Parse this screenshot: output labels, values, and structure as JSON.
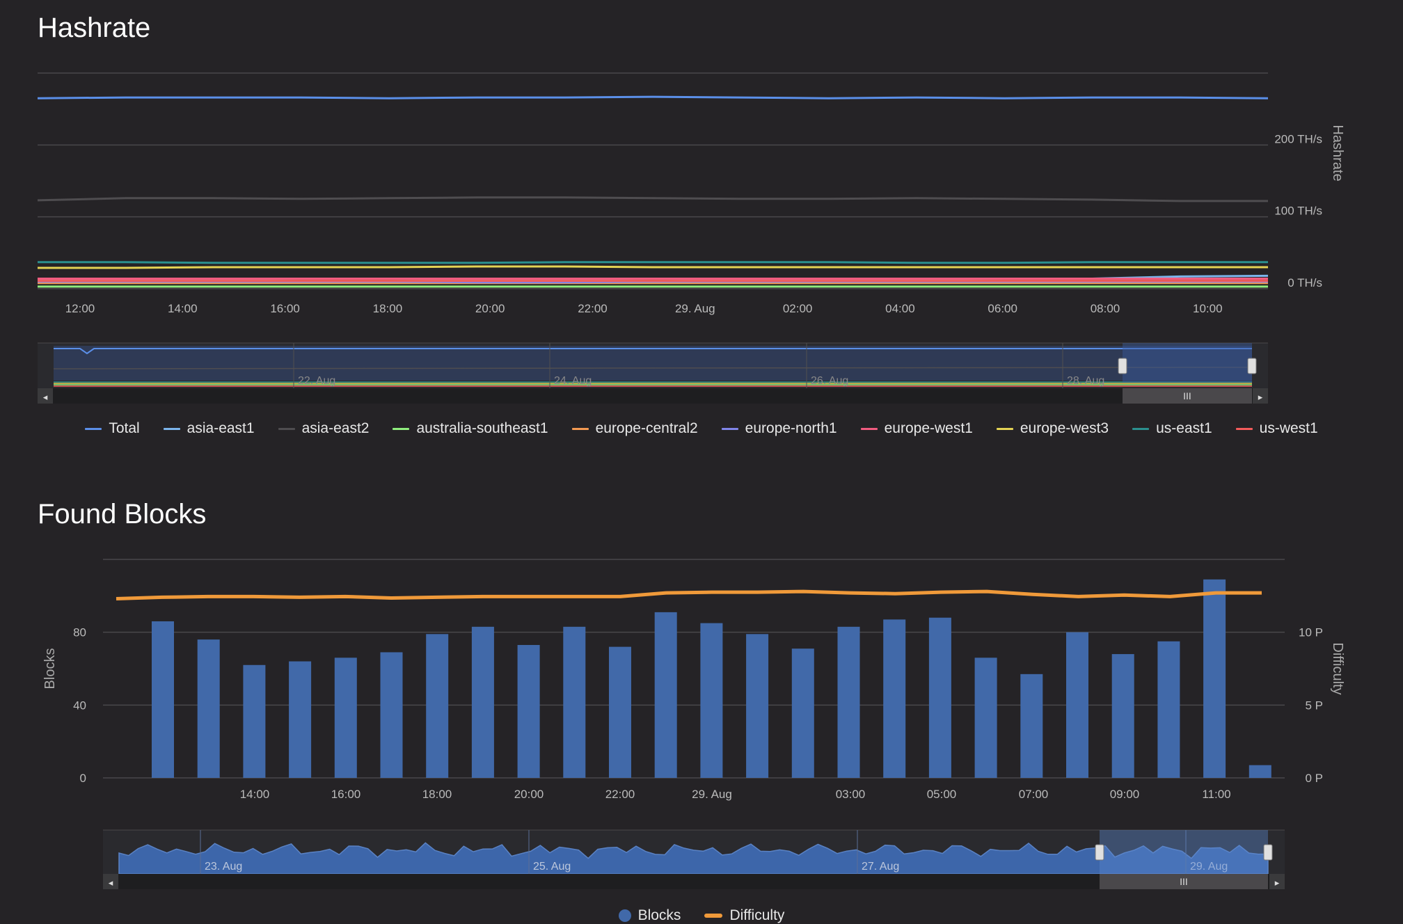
{
  "colors": {
    "background": "#252326",
    "grid": "#4a484b",
    "navigator_fill": "#34445e",
    "navigator_band": "#2f3a55",
    "bar": "#4169a9",
    "difficulty": "#f09a3a"
  },
  "hashrate": {
    "title": "Hashrate",
    "chart_data": {
      "type": "line",
      "ylabel": "Hashrate",
      "y_unit": "TH/s",
      "ylim": [
        0,
        300
      ],
      "y_ticks": [
        {
          "value": 0,
          "label": "0 TH/s"
        },
        {
          "value": 100,
          "label": "100 TH/s"
        },
        {
          "value": 200,
          "label": "200 TH/s"
        }
      ],
      "x_range": [
        "11:00",
        "11:15 (29. Aug)"
      ],
      "x_ticks": [
        "12:00",
        "14:00",
        "16:00",
        "18:00",
        "20:00",
        "22:00",
        "29. Aug",
        "02:00",
        "04:00",
        "06:00",
        "08:00",
        "10:00"
      ],
      "grid": true,
      "series": [
        {
          "name": "Total",
          "color": "#5b8fe8",
          "values": [
            265,
            266,
            266,
            266,
            265,
            266,
            266,
            267,
            266,
            265,
            266,
            265,
            266,
            266,
            265
          ]
        },
        {
          "name": "asia-east1",
          "color": "#7cb5ec",
          "values": [
            13,
            13,
            13,
            14,
            14,
            13,
            13,
            14,
            13,
            13,
            13,
            14,
            14,
            17,
            18
          ]
        },
        {
          "name": "asia-east2",
          "color": "#4f4d50",
          "values": [
            123,
            126,
            126,
            125,
            126,
            127,
            127,
            126,
            125,
            125,
            126,
            125,
            124,
            122,
            122
          ]
        },
        {
          "name": "australia-southeast1",
          "color": "#90ee7e",
          "values": [
            3,
            3,
            3,
            3,
            3,
            3,
            3,
            3,
            3,
            3,
            3,
            3,
            3,
            3,
            3
          ]
        },
        {
          "name": "europe-central2",
          "color": "#f49a52",
          "values": [
            8,
            8,
            8,
            8,
            8,
            8,
            8,
            8,
            8,
            8,
            8,
            8,
            8,
            8,
            8
          ]
        },
        {
          "name": "europe-north1",
          "color": "#8085e9",
          "values": [
            10,
            10,
            10,
            10,
            10,
            9,
            9,
            10,
            10,
            10,
            10,
            10,
            10,
            10,
            10
          ]
        },
        {
          "name": "europe-west1",
          "color": "#f15c80",
          "values": [
            14,
            14,
            14,
            14,
            14,
            14,
            14,
            14,
            14,
            14,
            14,
            14,
            14,
            14,
            14
          ]
        },
        {
          "name": "europe-west3",
          "color": "#e4d354",
          "values": [
            29,
            29,
            30,
            30,
            30,
            31,
            31,
            30,
            30,
            30,
            30,
            30,
            30,
            30,
            30
          ]
        },
        {
          "name": "us-east1",
          "color": "#2b908f",
          "values": [
            37,
            37,
            36,
            36,
            36,
            36,
            37,
            37,
            37,
            37,
            36,
            36,
            37,
            37,
            37
          ]
        },
        {
          "name": "us-west1",
          "color": "#f45b5b",
          "values": [
            11,
            11,
            11,
            11,
            11,
            11,
            11,
            11,
            11,
            11,
            11,
            11,
            11,
            11,
            11
          ]
        }
      ],
      "navigator_labels": [
        "22. Aug",
        "24. Aug",
        "26. Aug",
        "28. Aug"
      ],
      "legend_placement": "bottom-center"
    }
  },
  "blocks": {
    "title": "Found Blocks",
    "chart_data": {
      "type": "bar",
      "ylabel": "Blocks",
      "y2label": "Difficulty",
      "ylim": [
        0,
        120
      ],
      "y_ticks": [
        {
          "value": 0,
          "label": "0"
        },
        {
          "value": 40,
          "label": "40"
        },
        {
          "value": 80,
          "label": "80"
        }
      ],
      "y2lim": [
        0,
        15
      ],
      "y2_ticks": [
        {
          "value": 0,
          "label": "0 P"
        },
        {
          "value": 5,
          "label": "5 P"
        },
        {
          "value": 10,
          "label": "10 P"
        }
      ],
      "x_ticks": [
        "14:00",
        "16:00",
        "18:00",
        "20:00",
        "22:00",
        "29. Aug",
        "03:00",
        "05:00",
        "07:00",
        "09:00",
        "11:00"
      ],
      "grid": true,
      "series": [
        {
          "name": "Blocks",
          "color": "#4169a9",
          "values": [
            86,
            76,
            62,
            64,
            66,
            69,
            79,
            83,
            73,
            83,
            72,
            91,
            85,
            79,
            71,
            83,
            87,
            88,
            66,
            57,
            80,
            68,
            75,
            109,
            7
          ]
        },
        {
          "name": "Difficulty",
          "color": "#f09a3a",
          "values": [
            12.3,
            12.4,
            12.45,
            12.45,
            12.4,
            12.45,
            12.35,
            12.4,
            12.45,
            12.45,
            12.45,
            12.45,
            12.7,
            12.75,
            12.75,
            12.8,
            12.7,
            12.65,
            12.75,
            12.8,
            12.6,
            12.45,
            12.55,
            12.45,
            12.7,
            12.7
          ]
        }
      ],
      "navigator_labels": [
        "23. Aug",
        "25. Aug",
        "27. Aug",
        "29. Aug"
      ],
      "legend_placement": "bottom-center"
    }
  }
}
